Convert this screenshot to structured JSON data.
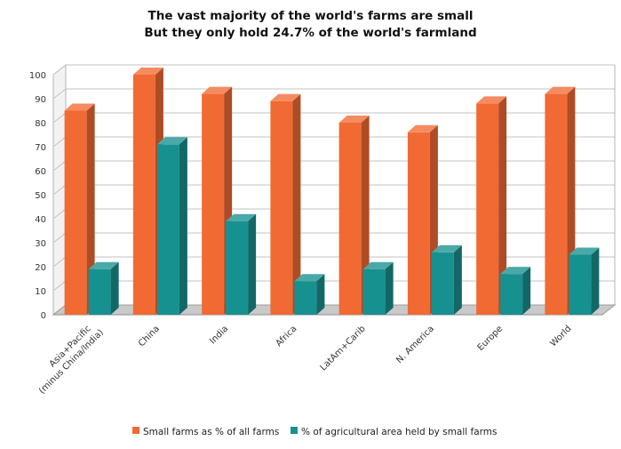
{
  "chart_data": {
    "type": "bar",
    "title": "The vast majority of the world's farms are small",
    "subtitle": "But they only hold 24.7% of the world's farmland",
    "categories": [
      [
        "Asia+Pacific",
        "(minus China/India)"
      ],
      [
        "China"
      ],
      [
        "India"
      ],
      [
        "Africa"
      ],
      [
        "LatAm+Carib"
      ],
      [
        "N. America"
      ],
      [
        "Europe"
      ],
      [
        "World"
      ]
    ],
    "series": [
      {
        "name": "Small farms as % of all farms",
        "color": "#f26a33",
        "values": [
          85,
          100,
          92,
          89,
          80,
          76,
          88,
          92
        ]
      },
      {
        "name": "% of agricultural area held by small farms",
        "color": "#17918f",
        "values": [
          19,
          71,
          39,
          14,
          19,
          26,
          17,
          25
        ]
      }
    ],
    "ylim": [
      0,
      100
    ],
    "yticks": [
      0,
      10,
      20,
      30,
      40,
      50,
      60,
      70,
      80,
      90,
      100
    ],
    "grid": true,
    "legend": "bottom"
  }
}
